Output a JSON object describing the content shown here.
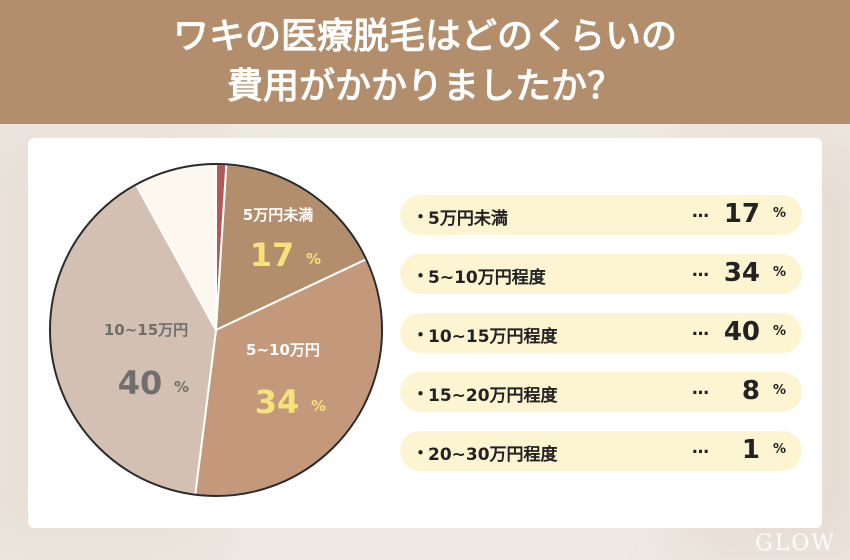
{
  "header": {
    "line1": "ワキの医療脱毛はどのくらいの",
    "line2": "費用がかかりましたか？"
  },
  "logo_text": "GLOW",
  "chart_data": {
    "type": "pie",
    "title": "ワキの医療脱毛はどのくらいの費用がかかりましたか？",
    "unit": "%",
    "categories": [
      "5万円未満",
      "5~10万円程度",
      "10~15万円程度",
      "15~20万円程度",
      "20~30万円程度"
    ],
    "values": [
      17,
      34,
      40,
      8,
      1
    ],
    "slice_labels": [
      {
        "label": "5万円未満",
        "value": "17",
        "unit": "%"
      },
      {
        "label": "5~10万円",
        "value": "34",
        "unit": "%"
      },
      {
        "label": "10~15万円",
        "value": "40",
        "unit": "%"
      }
    ],
    "slice_order_clockwise_from_top": [
      4,
      0,
      1,
      2,
      3
    ],
    "colors": [
      "#b28e6c",
      "#c4987a",
      "#d3c0b2",
      "#fdf8ef",
      "#b05a5a"
    ],
    "legend": "right"
  },
  "legend_items": [
    {
      "label": "5万円未満",
      "ellipsis": "…",
      "value": "17",
      "unit": "%"
    },
    {
      "label": "5~10万円程度",
      "ellipsis": "…",
      "value": "34",
      "unit": "%"
    },
    {
      "label": "10~15万円程度",
      "ellipsis": "…",
      "value": "40",
      "unit": "%"
    },
    {
      "label": "15~20万円程度",
      "ellipsis": "…",
      "value": "8",
      "unit": "%"
    },
    {
      "label": "20~30万円程度",
      "ellipsis": "…",
      "value": "1",
      "unit": "%"
    }
  ],
  "bullet": "・"
}
